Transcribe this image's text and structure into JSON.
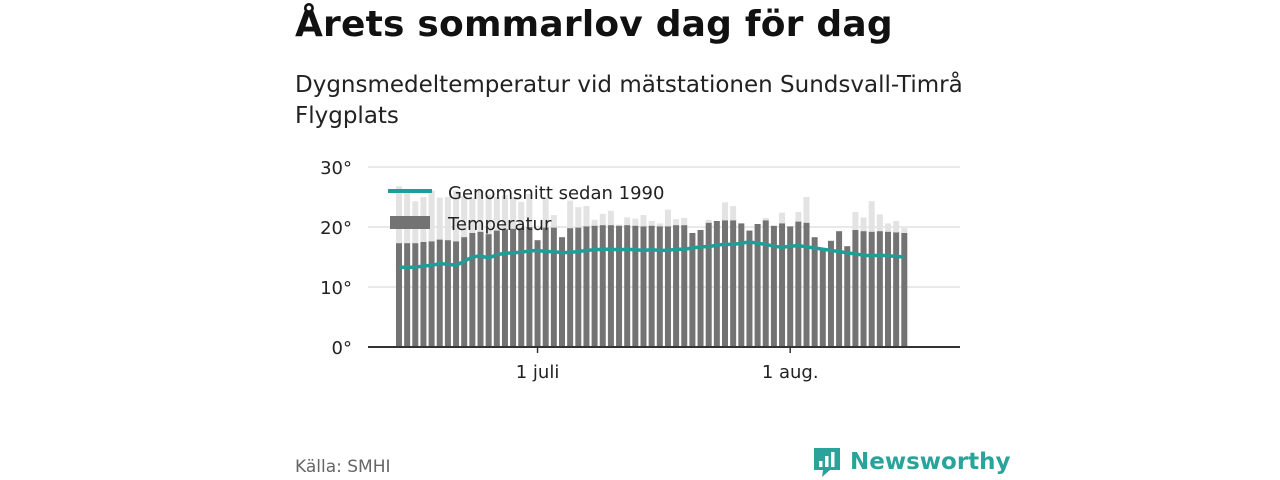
{
  "title": "Årets sommarlov dag för dag",
  "subtitle": "Dygnsmedeltemperatur vid mätstationen Sundsvall-Timrå Flygplats",
  "source": "Källa: SMHI",
  "brand": {
    "name": "Newsworthy",
    "logo_icon": "newsworthy-logo-icon",
    "color": "#2aa39a"
  },
  "colors": {
    "bar_dark": "#737373",
    "bar_light": "#e3e3e3",
    "average_line": "#1e9e96",
    "grid": "#dcdcdc",
    "axis": "#333333"
  },
  "chart_data": {
    "type": "bar",
    "y_ticks": [
      "0°",
      "10°",
      "20°",
      "30°"
    ],
    "ylim": [
      0,
      30
    ],
    "x_tick_labels": [
      {
        "label": "1 juli",
        "day_index": 17
      },
      {
        "label": "1 aug.",
        "day_index": 48
      }
    ],
    "legend": {
      "placement": "top-left"
    },
    "series": [
      {
        "name": "Temperatur",
        "type": "bar",
        "values": [
          26.8,
          26.0,
          24.3,
          25.0,
          26.1,
          24.9,
          25.0,
          26.1,
          25.2,
          24.8,
          26.0,
          25.4,
          25.0,
          25.3,
          25.0,
          24.2,
          25.5,
          17.8,
          24.9,
          22.0,
          18.3,
          24.4,
          23.3,
          23.5,
          21.2,
          22.2,
          22.7,
          20.4,
          21.6,
          21.4,
          22.0,
          21.0,
          20.6,
          22.9,
          21.3,
          21.5,
          19.0,
          19.5,
          21.2,
          21.0,
          24.1,
          23.5,
          20.6,
          19.4,
          20.5,
          21.5,
          20.2,
          22.4,
          20.1,
          22.5,
          25.0,
          18.3,
          16.3,
          17.7,
          19.3,
          16.8,
          22.5,
          21.6,
          24.3,
          22.1,
          20.6,
          21.0,
          19.8
        ]
      },
      {
        "name": "Genomsnitt sedan 1990",
        "type": "line",
        "values": [
          13.3,
          13.3,
          13.3,
          13.5,
          13.6,
          13.9,
          13.8,
          13.6,
          14.3,
          15.0,
          15.2,
          14.8,
          15.4,
          15.6,
          15.7,
          15.8,
          16.0,
          16.1,
          15.9,
          15.9,
          15.7,
          15.8,
          15.9,
          16.1,
          16.2,
          16.3,
          16.3,
          16.2,
          16.3,
          16.2,
          16.1,
          16.2,
          16.1,
          16.1,
          16.3,
          16.3,
          16.5,
          16.7,
          16.7,
          17.0,
          17.1,
          17.1,
          17.3,
          17.5,
          17.3,
          17.1,
          16.8,
          16.6,
          16.8,
          16.9,
          16.7,
          16.5,
          16.3,
          16.1,
          15.9,
          15.7,
          15.5,
          15.3,
          15.2,
          15.3,
          15.2,
          15.1,
          15.0
        ]
      }
    ]
  }
}
